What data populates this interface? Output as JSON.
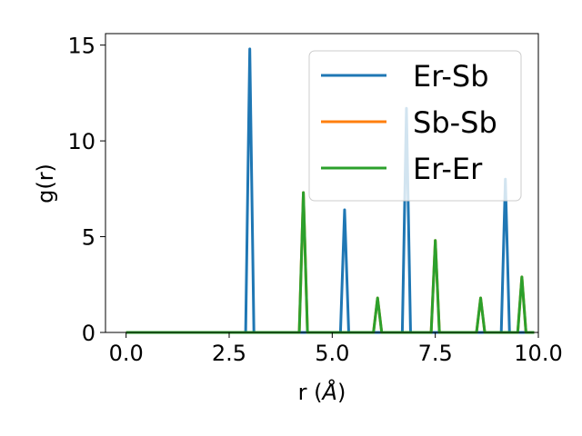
{
  "chart_data": {
    "type": "line",
    "title": "",
    "xlabel": "r (",
    "xlabel_unit": "Å",
    "xlabel_close": ")",
    "ylabel": "g(r)",
    "xlim": [
      -0.5,
      10.0
    ],
    "ylim": [
      0,
      15.6
    ],
    "x_ticks": [
      0.0,
      2.5,
      5.0,
      7.5,
      10.0
    ],
    "x_tick_labels": [
      "0.0",
      "2.5",
      "5.0",
      "7.5",
      "10.0"
    ],
    "y_ticks": [
      0,
      5,
      10,
      15
    ],
    "y_tick_labels": [
      "0",
      "5",
      "10",
      "15"
    ],
    "grid": false,
    "legend_position": "top-right",
    "series": [
      {
        "name": "Er-Sb",
        "color": "#1f77b4",
        "x": [
          0.0,
          2.9,
          3.0,
          3.1,
          5.2,
          5.3,
          5.4,
          6.7,
          6.8,
          6.9,
          9.1,
          9.2,
          9.3,
          9.9
        ],
        "values": [
          0,
          0,
          14.8,
          0,
          0,
          6.4,
          0,
          0,
          11.7,
          0,
          0,
          8.0,
          0,
          0
        ]
      },
      {
        "name": "Sb-Sb",
        "color": "#ff7f0e",
        "x": [
          0.0,
          4.2,
          4.3,
          4.4,
          6.0,
          6.1,
          6.2,
          7.4,
          7.5,
          7.6,
          8.5,
          8.6,
          8.7,
          9.5,
          9.6,
          9.7,
          9.9
        ],
        "values": [
          0,
          0,
          7.3,
          0,
          0,
          1.8,
          0,
          0,
          4.8,
          0,
          0,
          1.8,
          0,
          0,
          2.9,
          0,
          0
        ]
      },
      {
        "name": "Er-Er",
        "color": "#2ca02c",
        "x": [
          0.0,
          4.2,
          4.3,
          4.4,
          6.0,
          6.1,
          6.2,
          7.4,
          7.5,
          7.6,
          8.5,
          8.6,
          8.7,
          9.5,
          9.6,
          9.7,
          9.9
        ],
        "values": [
          0,
          0,
          7.3,
          0,
          0,
          1.8,
          0,
          0,
          4.8,
          0,
          0,
          1.8,
          0,
          0,
          2.9,
          0,
          0
        ]
      }
    ]
  }
}
